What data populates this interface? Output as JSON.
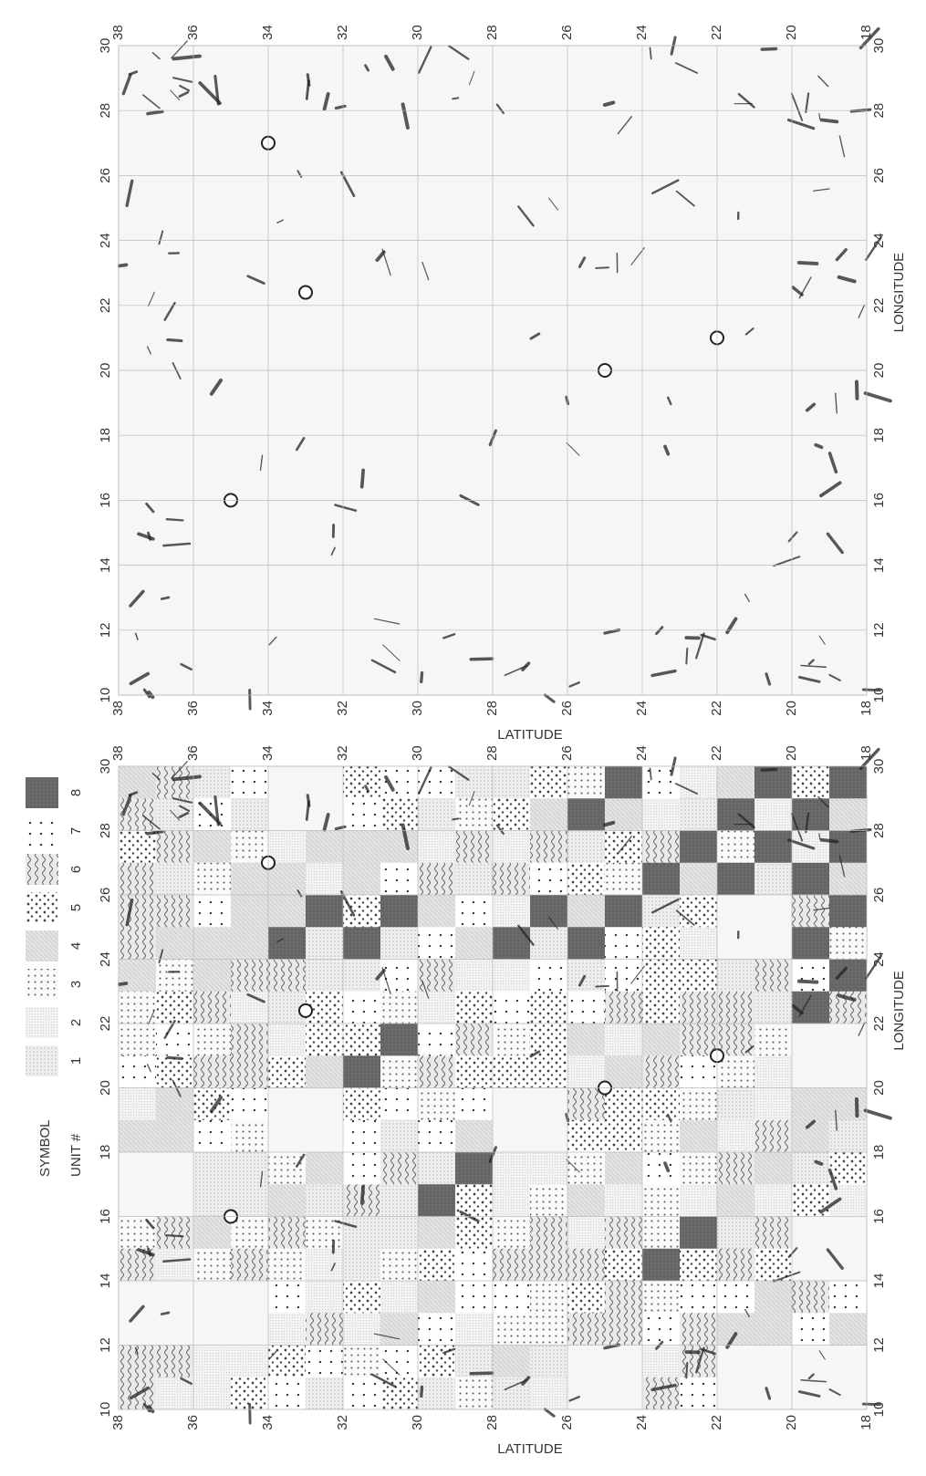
{
  "legend": {
    "symbol_label": "SYMBOL",
    "unit_label": "UNIT #",
    "units": [
      1,
      2,
      3,
      4,
      5,
      6,
      7,
      8
    ]
  },
  "maps": [
    {
      "latitude_label": "LATITUDE",
      "longitude_label": "LONGITUDE",
      "latitude_ticks": [
        38,
        36,
        34,
        32,
        30,
        28,
        26,
        24,
        22,
        20,
        18
      ],
      "longitude_ticks": [
        10,
        12,
        14,
        16,
        18,
        20,
        22,
        24,
        26,
        28,
        30
      ]
    },
    {
      "latitude_label": "LATITUDE",
      "longitude_label": "LONGITUDE",
      "latitude_ticks": [
        38,
        36,
        34,
        32,
        30,
        28,
        26,
        24,
        22,
        20,
        18
      ],
      "longitude_ticks": [
        10,
        12,
        14,
        16,
        18,
        20,
        22,
        24,
        26,
        28,
        30
      ]
    }
  ]
}
